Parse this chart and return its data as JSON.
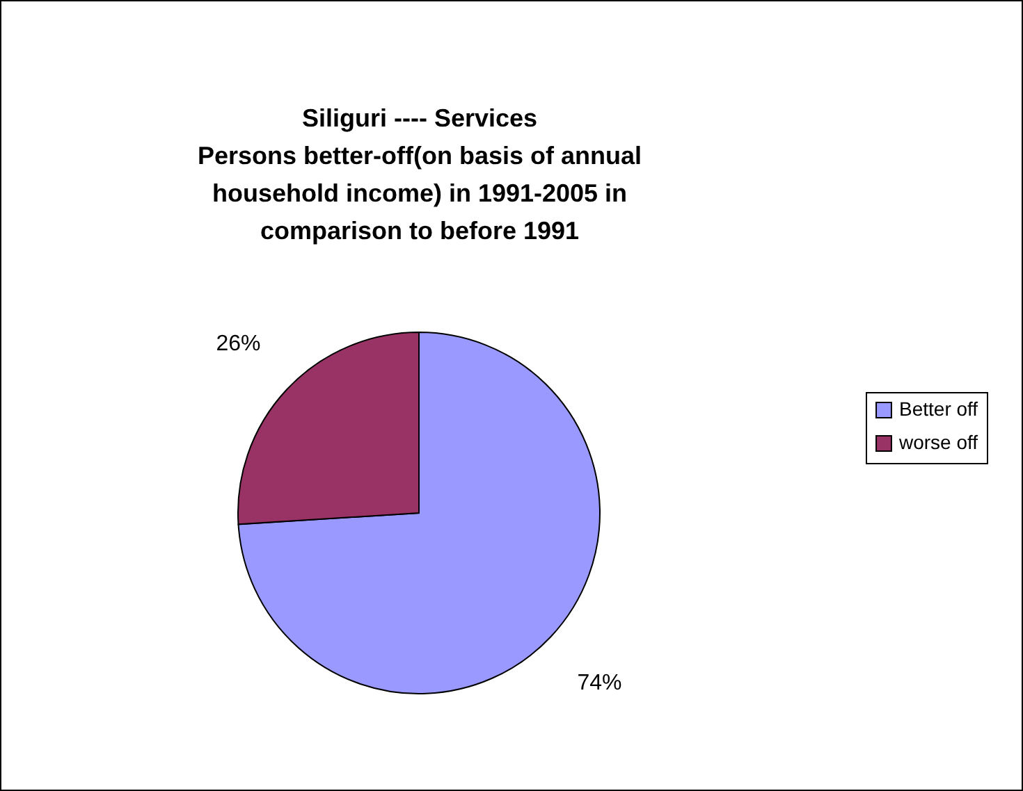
{
  "chart_data": {
    "type": "pie",
    "title": "Siliguri ---- Services\nPersons better-off(on basis of annual\nhousehold income) in 1991-2005 in\ncomparison to before 1991",
    "categories": [
      "Better off",
      "worse off"
    ],
    "values": [
      74,
      26
    ],
    "colors": [
      "#9999ff",
      "#993366"
    ],
    "value_labels": [
      "74%",
      "26%"
    ],
    "legend": "right"
  }
}
